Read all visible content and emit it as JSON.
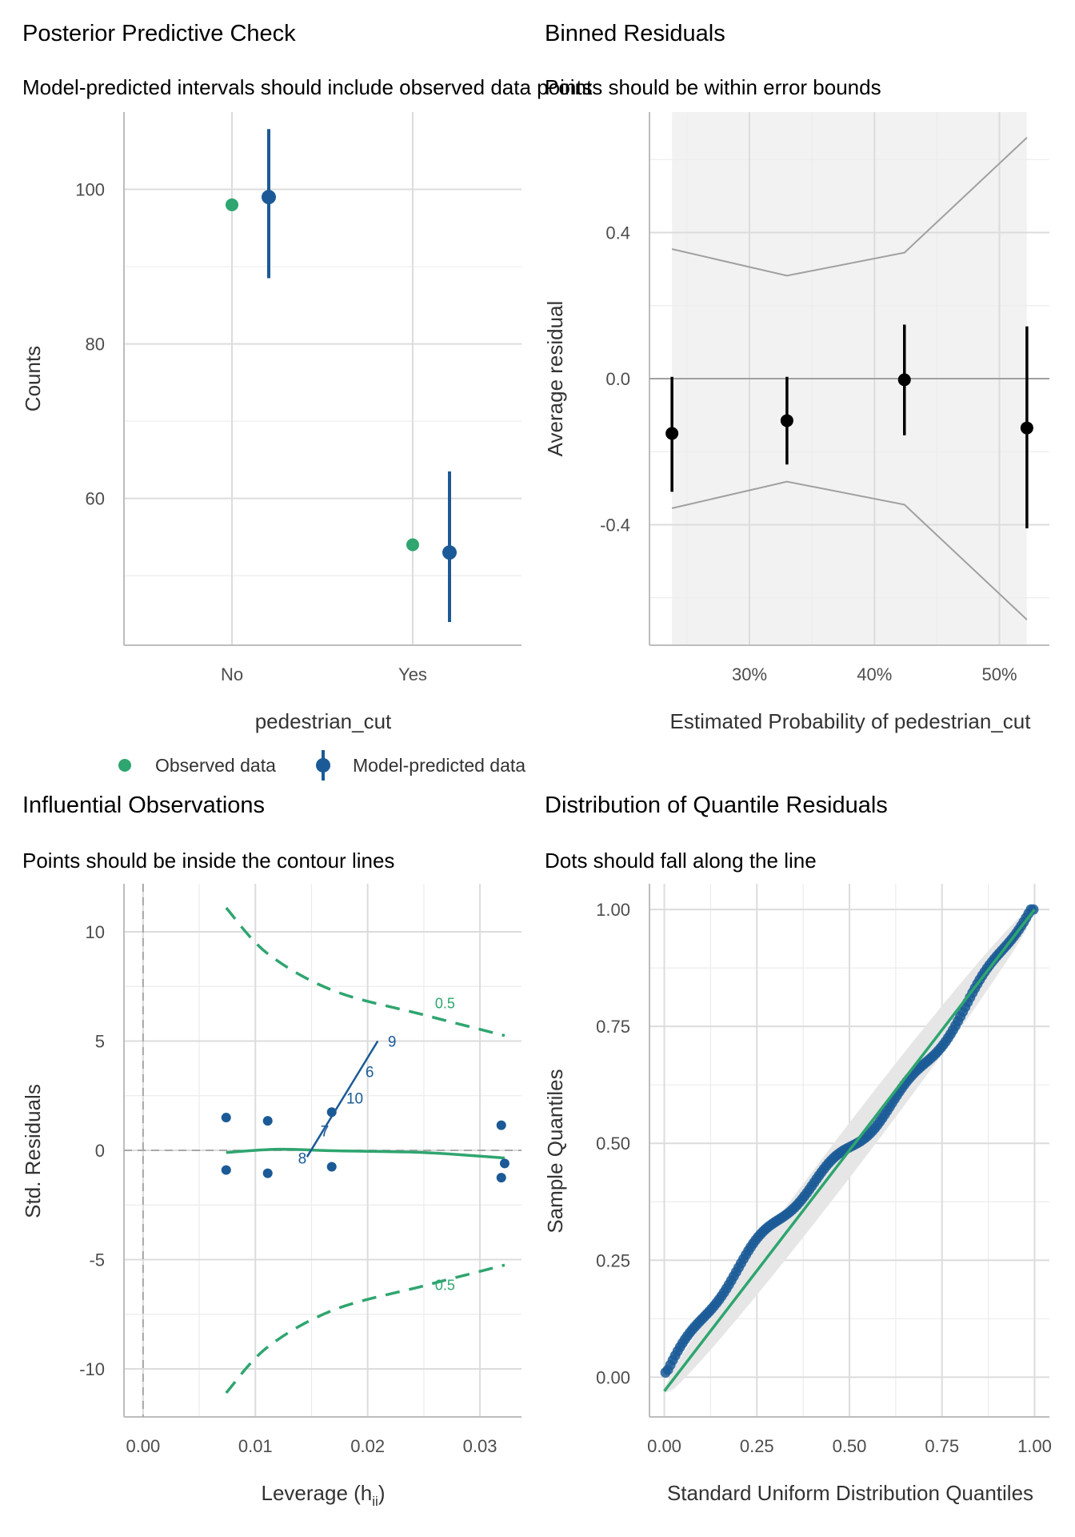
{
  "colors": {
    "observed": "#2fa56f",
    "predicted": "#1b5a96",
    "residual_point": "#000000",
    "bounds_line": "#a0a0a0",
    "bounds_fill": "#f2f2f2",
    "ref_line": "#a8a8a8",
    "contour": "#2fa56f",
    "qq_point": "#1b5a96",
    "qq_line": "#2fa56f",
    "qq_band": "#e6e6e6"
  },
  "chart_data": [
    {
      "id": "ppc",
      "type": "scatter",
      "title": "Posterior Predictive Check",
      "subtitle": "Model-predicted intervals should include observed data points",
      "xlabel": "pedestrian_cut",
      "ylabel": "Counts",
      "categories": [
        "No",
        "Yes"
      ],
      "yticks": [
        60,
        80,
        100
      ],
      "ylim": [
        41,
        110
      ],
      "series": [
        {
          "name": "Observed data",
          "values": [
            98,
            54
          ]
        },
        {
          "name": "Model-predicted data",
          "values": [
            99,
            53
          ],
          "lower": [
            88.5,
            44
          ],
          "upper": [
            107.8,
            63.5
          ]
        }
      ],
      "legend": {
        "position": "bottom",
        "items": [
          "Observed data",
          "Model-predicted data"
        ]
      }
    },
    {
      "id": "binned",
      "type": "scatter",
      "title": "Binned Residuals",
      "subtitle": "Points should be within error bounds",
      "xlabel": "Estimated Probability of pedestrian_cut",
      "ylabel": "Average residual",
      "xticks": [
        "30%",
        "40%",
        "50%"
      ],
      "xtick_values": [
        0.3,
        0.4,
        0.5
      ],
      "xlim": [
        0.22,
        0.54
      ],
      "yticks": [
        -0.4,
        0.0,
        0.4
      ],
      "ylim": [
        -0.73,
        0.73
      ],
      "x": [
        0.238,
        0.33,
        0.424,
        0.522
      ],
      "y": [
        -0.15,
        -0.115,
        -0.003,
        -0.135
      ],
      "ci_low": [
        -0.31,
        -0.235,
        -0.155,
        -0.41
      ],
      "ci_high": [
        0.005,
        0.005,
        0.148,
        0.143
      ],
      "bound_upper": [
        0.355,
        0.282,
        0.345,
        0.66
      ],
      "bound_lower": [
        -0.355,
        -0.282,
        -0.345,
        -0.66
      ]
    },
    {
      "id": "influence",
      "type": "scatter",
      "title": "Influential Observations",
      "subtitle": "Points should be inside the contour lines",
      "xlabel": "Leverage (h",
      "xlabel_sub": "ii",
      "xlabel_end": ")",
      "ylabel": "Std. Residuals",
      "xticks": [
        "0.00",
        "0.01",
        "0.02",
        "0.03"
      ],
      "xtick_values": [
        0.0,
        0.01,
        0.02,
        0.03
      ],
      "xlim": [
        -0.0017,
        0.0337
      ],
      "yticks": [
        -10,
        -5,
        0,
        5,
        10
      ],
      "ylim": [
        -12.2,
        12.2
      ],
      "points": [
        {
          "x": 0.0074,
          "y": 1.5
        },
        {
          "x": 0.0074,
          "y": -0.9
        },
        {
          "x": 0.0111,
          "y": 1.35
        },
        {
          "x": 0.0111,
          "y": -1.05
        },
        {
          "x": 0.0168,
          "y": 1.75
        },
        {
          "x": 0.0168,
          "y": -0.75
        },
        {
          "x": 0.0319,
          "y": 1.15
        },
        {
          "x": 0.0322,
          "y": -0.6
        },
        {
          "x": 0.0319,
          "y": -1.25
        }
      ],
      "labels": [
        {
          "text": "9",
          "x": 0.0218,
          "y": 5.0
        },
        {
          "text": "6",
          "x": 0.0198,
          "y": 3.6
        },
        {
          "text": "10",
          "x": 0.0181,
          "y": 2.4
        },
        {
          "text": "7",
          "x": 0.0158,
          "y": 0.9
        },
        {
          "text": "8",
          "x": 0.0138,
          "y": -0.35
        }
      ],
      "label_line": [
        [
          0.0146,
          -0.3
        ],
        [
          0.0209,
          5.0
        ]
      ],
      "smooth": [
        [
          0.0074,
          -0.1
        ],
        [
          0.012,
          0.05
        ],
        [
          0.017,
          -0.02
        ],
        [
          0.025,
          -0.1
        ],
        [
          0.0322,
          -0.35
        ]
      ],
      "contour_upper": [
        [
          0.0074,
          11.1
        ],
        [
          0.0111,
          9.0
        ],
        [
          0.017,
          7.3
        ],
        [
          0.025,
          6.2
        ],
        [
          0.0322,
          5.25
        ]
      ],
      "contour_lower": [
        [
          0.0074,
          -11.1
        ],
        [
          0.0111,
          -9.0
        ],
        [
          0.017,
          -7.3
        ],
        [
          0.025,
          -6.2
        ],
        [
          0.0322,
          -5.25
        ]
      ],
      "contour_label": "0.5",
      "contour_label_pos": [
        {
          "x": 0.026,
          "y": 6.5
        },
        {
          "x": 0.026,
          "y": -6.4
        }
      ]
    },
    {
      "id": "qq",
      "type": "scatter",
      "title": "Distribution of Quantile Residuals",
      "subtitle": "Dots should fall along the line",
      "xlabel": "Standard Uniform Distribution Quantiles",
      "ylabel": "Sample Quantiles",
      "xticks": [
        "0.00",
        "0.25",
        "0.50",
        "0.75",
        "1.00"
      ],
      "xtick_values": [
        0.0,
        0.25,
        0.5,
        0.75,
        1.0
      ],
      "xlim": [
        -0.04,
        1.04
      ],
      "yticks": [
        "0.00",
        "0.25",
        "0.50",
        "0.75",
        "1.00"
      ],
      "ytick_values": [
        0.0,
        0.25,
        0.5,
        0.75,
        1.0
      ],
      "ylim": [
        -0.085,
        1.055
      ],
      "ref_line": [
        [
          0.0,
          -0.03
        ],
        [
          1.0,
          1.0
        ]
      ],
      "n_points": 152,
      "description": "Sample quantile residuals plotted against uniform quantiles, closely following the reference line within a grey confidence band"
    }
  ]
}
